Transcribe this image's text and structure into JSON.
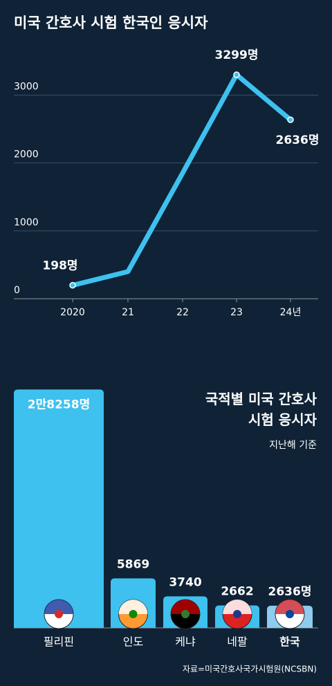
{
  "chart_data": [
    {
      "type": "line",
      "title": "미국 간호사 시험 한국인 응시자",
      "categories": [
        "2020",
        "21",
        "22",
        "23",
        "24년"
      ],
      "values": [
        198,
        400,
        1850,
        3299,
        2636
      ],
      "value_labels": [
        "198명",
        null,
        null,
        "3299명",
        "2636명"
      ],
      "color": "#3ec1ef",
      "ylim": [
        0,
        3300
      ],
      "yticks": [
        0,
        1000,
        2000,
        3000
      ],
      "grid": true
    },
    {
      "type": "bar",
      "title": "국적별 미국 간호사\n시험 응시자",
      "subtitle": "지난해 기준",
      "categories": [
        "필리핀",
        "인도",
        "케냐",
        "네팔",
        "한국"
      ],
      "values": [
        28258,
        5869,
        3740,
        2662,
        2636
      ],
      "value_labels": [
        "2만8258명",
        "5869",
        "3740",
        "2662",
        "2636명"
      ],
      "colors": [
        "#3ec1ef",
        "#3ec1ef",
        "#3ec1ef",
        "#3ec1ef",
        "#8ecbee"
      ],
      "label_colors": [
        "#ffffff",
        "#ffffff",
        "#ffffff",
        "#ffffff",
        "#f4ef9c"
      ],
      "ylim": [
        0,
        30000
      ],
      "source": "자료=미국간호사국가시험원(NCSBN)"
    }
  ]
}
